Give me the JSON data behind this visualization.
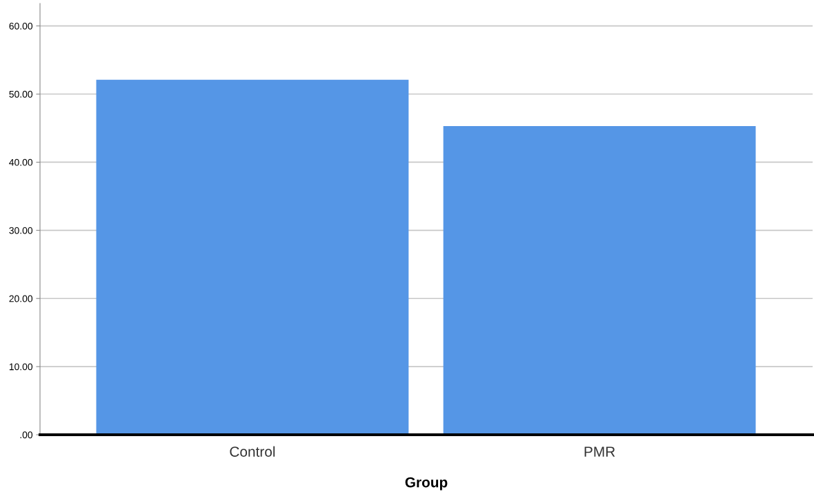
{
  "chart_data": {
    "type": "bar",
    "xlabel": "Group",
    "categories": [
      "Control",
      "PMR"
    ],
    "values": [
      52.1,
      45.3
    ],
    "color": "#5596e6",
    "ylim": [
      0,
      63.3
    ],
    "yticks": [
      {
        "value": 0,
        "label": ".00"
      },
      {
        "value": 10,
        "label": "10.00"
      },
      {
        "value": 20,
        "label": "20.00"
      },
      {
        "value": 30,
        "label": "30.00"
      },
      {
        "value": 40,
        "label": "40.00"
      },
      {
        "value": 50,
        "label": "50.00"
      },
      {
        "value": 60,
        "label": "60.00"
      }
    ],
    "grid": "y"
  }
}
